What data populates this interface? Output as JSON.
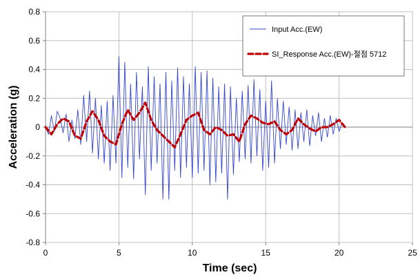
{
  "chart_data": {
    "type": "line",
    "title": "",
    "xlabel": "Time (sec)",
    "ylabel": "Acceleration (g)",
    "xlim": [
      0,
      25
    ],
    "ylim": [
      -0.8,
      0.8
    ],
    "xticks": [
      "0",
      "5",
      "10",
      "15",
      "20",
      "25"
    ],
    "yticks": [
      "0.8",
      "0.6",
      "0.4",
      "0.2",
      "0",
      "-0.2",
      "-0.4",
      "-0.6",
      "-0.8"
    ],
    "grid": true,
    "legend_position": "top-right",
    "series": [
      {
        "name": "Input Acc.(EW)",
        "color": "#3344cc",
        "style": "solid",
        "x": [
          0.0,
          0.2,
          0.4,
          0.6,
          0.8,
          1.0,
          1.2,
          1.4,
          1.6,
          1.8,
          2.0,
          2.2,
          2.4,
          2.6,
          2.8,
          3.0,
          3.2,
          3.4,
          3.6,
          3.8,
          4.0,
          4.2,
          4.4,
          4.6,
          4.8,
          5.0,
          5.2,
          5.4,
          5.6,
          5.8,
          6.0,
          6.2,
          6.4,
          6.6,
          6.8,
          7.0,
          7.2,
          7.4,
          7.6,
          7.8,
          8.0,
          8.2,
          8.4,
          8.6,
          8.8,
          9.0,
          9.2,
          9.4,
          9.6,
          9.8,
          10.0,
          10.2,
          10.4,
          10.6,
          10.8,
          11.0,
          11.2,
          11.4,
          11.6,
          11.8,
          12.0,
          12.2,
          12.4,
          12.6,
          12.8,
          13.0,
          13.2,
          13.4,
          13.6,
          13.8,
          14.0,
          14.2,
          14.4,
          14.6,
          14.8,
          15.0,
          15.2,
          15.4,
          15.6,
          15.8,
          16.0,
          16.2,
          16.4,
          16.6,
          16.8,
          17.0,
          17.2,
          17.4,
          17.6,
          17.8,
          18.0,
          18.2,
          18.4,
          18.6,
          18.8,
          19.0,
          19.2,
          19.4,
          19.6,
          19.8,
          20.0,
          20.2,
          20.4
        ],
        "values": [
          0.0,
          -0.05,
          0.08,
          -0.03,
          0.11,
          0.06,
          -0.04,
          0.09,
          -0.1,
          0.05,
          -0.08,
          0.12,
          -0.12,
          0.22,
          -0.1,
          0.25,
          -0.18,
          0.2,
          -0.22,
          0.15,
          -0.25,
          0.18,
          -0.3,
          0.22,
          -0.25,
          0.49,
          -0.35,
          0.45,
          -0.28,
          0.3,
          -0.36,
          0.38,
          -0.22,
          0.28,
          -0.47,
          0.42,
          -0.3,
          0.35,
          -0.25,
          0.3,
          -0.5,
          0.38,
          -0.5,
          0.32,
          -0.3,
          0.41,
          -0.35,
          0.35,
          -0.28,
          0.3,
          -0.35,
          0.42,
          -0.32,
          0.38,
          -0.3,
          0.39,
          -0.4,
          0.34,
          -0.38,
          0.28,
          -0.32,
          0.3,
          -0.5,
          0.28,
          -0.33,
          0.2,
          -0.24,
          0.25,
          -0.22,
          0.29,
          -0.25,
          0.33,
          -0.2,
          0.26,
          -0.3,
          0.18,
          -0.28,
          0.32,
          -0.25,
          0.2,
          -0.15,
          0.18,
          -0.12,
          0.14,
          -0.16,
          0.12,
          -0.15,
          0.1,
          -0.1,
          0.12,
          -0.13,
          0.08,
          -0.06,
          0.1,
          -0.1,
          0.06,
          -0.07,
          0.08,
          -0.05,
          0.06,
          -0.03,
          0.03,
          0.0
        ]
      },
      {
        "name": "SI_Response Acc.(EW)-절점 5712",
        "color": "#c00000",
        "style": "dashed",
        "x": [
          0.0,
          0.4,
          0.8,
          1.2,
          1.6,
          2.0,
          2.4,
          2.8,
          3.2,
          3.6,
          4.0,
          4.4,
          4.8,
          5.2,
          5.6,
          6.0,
          6.4,
          6.8,
          7.2,
          7.6,
          8.0,
          8.4,
          8.8,
          9.2,
          9.6,
          10.0,
          10.4,
          10.8,
          11.2,
          11.6,
          12.0,
          12.4,
          12.8,
          13.2,
          13.6,
          14.0,
          14.4,
          14.8,
          15.2,
          15.6,
          16.0,
          16.4,
          16.8,
          17.2,
          17.6,
          18.0,
          18.4,
          18.8,
          19.2,
          19.6,
          20.0,
          20.4
        ],
        "values": [
          0.0,
          -0.05,
          0.02,
          0.06,
          0.04,
          -0.06,
          -0.08,
          0.04,
          0.11,
          0.05,
          -0.06,
          -0.1,
          -0.12,
          0.02,
          0.12,
          0.05,
          0.1,
          0.17,
          0.05,
          -0.02,
          -0.06,
          -0.1,
          -0.14,
          -0.05,
          0.05,
          0.08,
          0.1,
          -0.02,
          -0.05,
          0.0,
          -0.02,
          -0.06,
          -0.05,
          -0.1,
          0.02,
          0.08,
          0.06,
          0.03,
          0.02,
          0.04,
          -0.02,
          -0.05,
          -0.02,
          0.06,
          0.02,
          -0.01,
          -0.03,
          0.0,
          0.0,
          0.02,
          0.05,
          0.0
        ]
      }
    ]
  }
}
